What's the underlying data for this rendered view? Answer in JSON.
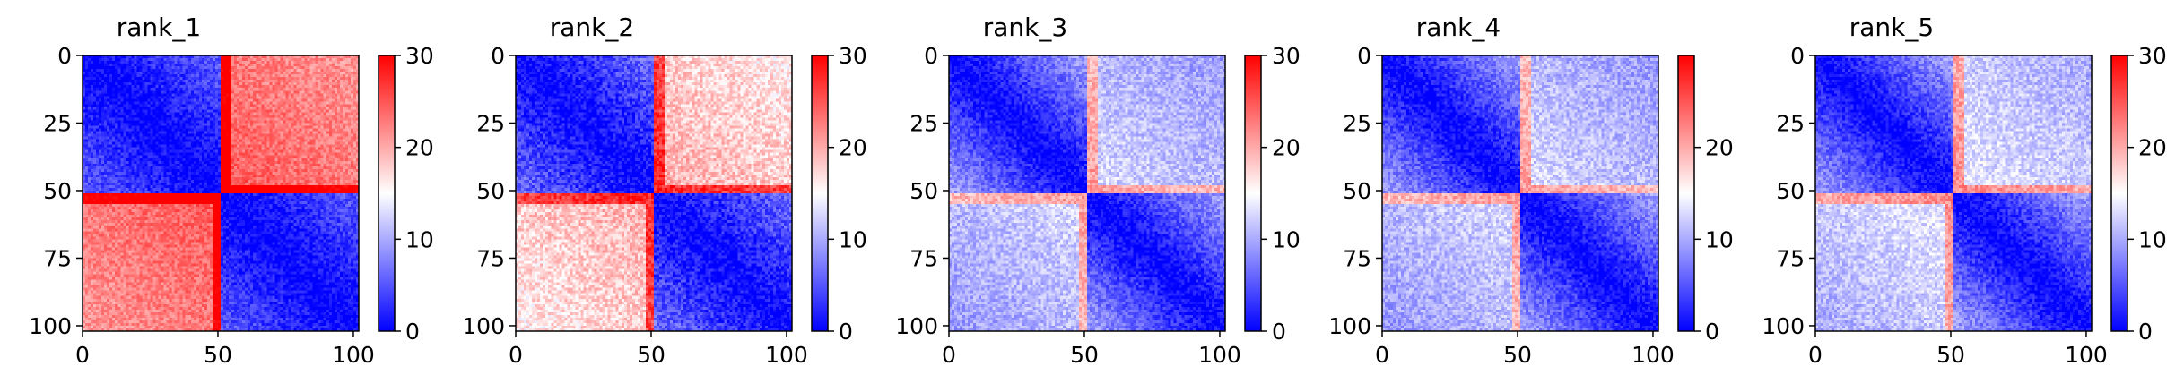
{
  "chart_data": [
    {
      "type": "heatmap",
      "title": "rank_1",
      "x_ticks": [
        "0",
        "50",
        "100"
      ],
      "y_ticks": [
        "0",
        "25",
        "50",
        "75",
        "100"
      ],
      "xlim": [
        0,
        102
      ],
      "ylim": [
        102,
        0
      ],
      "size": 102,
      "colorbar": {
        "ticks": [
          "0",
          "10",
          "20",
          "30"
        ],
        "range": [
          0,
          30
        ],
        "colormap": "bwr"
      },
      "pattern": {
        "split": 51,
        "in_block_near": 0,
        "in_block_far": 5,
        "off_block": 25,
        "noise": 2.5
      }
    },
    {
      "type": "heatmap",
      "title": "rank_2",
      "x_ticks": [
        "0",
        "50",
        "100"
      ],
      "y_ticks": [
        "0",
        "25",
        "50",
        "75",
        "100"
      ],
      "xlim": [
        0,
        102
      ],
      "ylim": [
        102,
        0
      ],
      "size": 102,
      "colorbar": {
        "ticks": [
          "0",
          "10",
          "20",
          "30"
        ],
        "range": [
          0,
          30
        ],
        "colormap": "bwr"
      },
      "pattern": {
        "split": 51,
        "in_block_near": 0,
        "in_block_far": 6,
        "off_block": 20,
        "noise": 3
      }
    },
    {
      "type": "heatmap",
      "title": "rank_3",
      "x_ticks": [
        "0",
        "50",
        "100"
      ],
      "y_ticks": [
        "0",
        "25",
        "50",
        "75",
        "100"
      ],
      "xlim": [
        0,
        102
      ],
      "ylim": [
        102,
        0
      ],
      "size": 102,
      "colorbar": {
        "ticks": [
          "0",
          "10",
          "20",
          "30"
        ],
        "range": [
          0,
          30
        ],
        "colormap": "bwr"
      },
      "pattern": {
        "split": 51,
        "in_block_near": 0,
        "in_block_far": 9,
        "off_block": 13,
        "noise": 2.5
      }
    },
    {
      "type": "heatmap",
      "title": "rank_4",
      "x_ticks": [
        "0",
        "50",
        "100"
      ],
      "y_ticks": [
        "0",
        "25",
        "50",
        "75",
        "100"
      ],
      "xlim": [
        0,
        102
      ],
      "ylim": [
        102,
        0
      ],
      "size": 102,
      "colorbar": {
        "ticks": [
          "0",
          "10",
          "20"
        ],
        "range": [
          0,
          30
        ],
        "colormap": "bwr"
      },
      "pattern": {
        "split": 51,
        "in_block_near": 0,
        "in_block_far": 9,
        "off_block": 13,
        "noise": 2.5
      }
    },
    {
      "type": "heatmap",
      "title": "rank_5",
      "x_ticks": [
        "0",
        "50",
        "100"
      ],
      "y_ticks": [
        "0",
        "25",
        "50",
        "75",
        "100"
      ],
      "xlim": [
        0,
        102
      ],
      "ylim": [
        102,
        0
      ],
      "size": 102,
      "colorbar": {
        "ticks": [
          "0",
          "10",
          "20",
          "30"
        ],
        "range": [
          0,
          30
        ],
        "colormap": "bwr"
      },
      "pattern": {
        "split": 51,
        "in_block_near": 0,
        "in_block_far": 9,
        "off_block": 14,
        "noise": 2.5
      }
    }
  ]
}
